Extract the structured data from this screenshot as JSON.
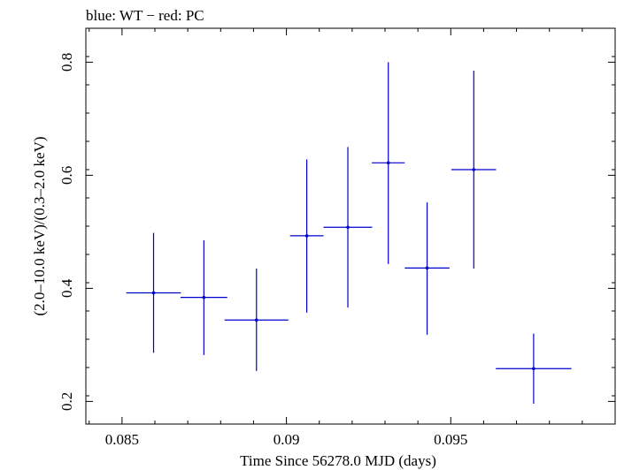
{
  "chart_data": {
    "type": "scatter",
    "title": "blue: WT − red: PC",
    "xlabel": "Time Since 56278.0 MJD (days)",
    "ylabel": "(2.0–10.0 keV)/(0.3–2.0 keV)",
    "xlim": [
      0.0839,
      0.1
    ],
    "ylim": [
      0.16,
      0.86
    ],
    "xticks": [
      0.085,
      0.09,
      0.095
    ],
    "xtick_labels": [
      "0.085",
      "0.09",
      "0.095"
    ],
    "yticks": [
      0.2,
      0.4,
      0.6,
      0.8
    ],
    "ytick_labels": [
      "0.2",
      "0.4",
      "0.6",
      "0.8"
    ],
    "grid": false,
    "legend": "none",
    "series": [
      {
        "color": "#0000cc",
        "points": [
          {
            "x": 0.08596,
            "y": 0.392,
            "xerr": 0.00083,
            "ylo": 0.286,
            "yhi": 0.498
          },
          {
            "x": 0.08749,
            "y": 0.384,
            "xerr": 0.00071,
            "ylo": 0.282,
            "yhi": 0.485
          },
          {
            "x": 0.08909,
            "y": 0.344,
            "xerr": 0.00097,
            "ylo": 0.254,
            "yhi": 0.435
          },
          {
            "x": 0.09062,
            "y": 0.493,
            "xerr": 0.00051,
            "ylo": 0.357,
            "yhi": 0.628
          },
          {
            "x": 0.09187,
            "y": 0.508,
            "xerr": 0.00074,
            "ylo": 0.366,
            "yhi": 0.65
          },
          {
            "x": 0.0931,
            "y": 0.622,
            "xerr": 0.0005,
            "ylo": 0.443,
            "yhi": 0.8
          },
          {
            "x": 0.09428,
            "y": 0.436,
            "xerr": 0.00068,
            "ylo": 0.318,
            "yhi": 0.552
          },
          {
            "x": 0.0957,
            "y": 0.61,
            "xerr": 0.00068,
            "ylo": 0.435,
            "yhi": 0.785
          },
          {
            "x": 0.09752,
            "y": 0.258,
            "xerr": 0.00115,
            "ylo": 0.196,
            "yhi": 0.32
          }
        ]
      }
    ]
  }
}
